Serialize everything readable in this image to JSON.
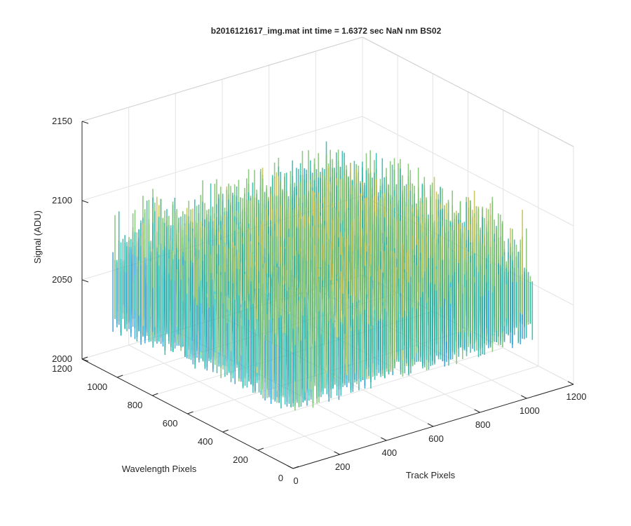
{
  "chart_data": {
    "type": "surface",
    "title": "b2016121617_img.mat int time = 1.6372 sec  NaN nm BS02",
    "xlabel": "Track Pixels",
    "ylabel": "Wavelength Pixels",
    "zlabel": "Signal (ADU)",
    "xlim": [
      0,
      1200
    ],
    "ylim": [
      0,
      1200
    ],
    "zlim": [
      2000,
      2150
    ],
    "x_ticks": [
      "0",
      "200",
      "400",
      "600",
      "800",
      "1000",
      "1200"
    ],
    "y_ticks": [
      "0",
      "200",
      "400",
      "600",
      "800",
      "1000",
      "1200"
    ],
    "z_ticks": [
      "2000",
      "2050",
      "2100",
      "2150"
    ],
    "data_extent": {
      "x": [
        0,
        1024
      ],
      "y": [
        0,
        1024
      ]
    },
    "grid": true,
    "colormap": "parula",
    "colors": [
      "#0072BD",
      "#2F9BD5",
      "#2CB5A8",
      "#7CC06E",
      "#C3BC4A",
      "#E2BC3E"
    ],
    "signal_summary": {
      "typical_min": 2025,
      "typical_max": 2110,
      "noise": "high-frequency pixel noise, slight ridge near center track"
    }
  }
}
